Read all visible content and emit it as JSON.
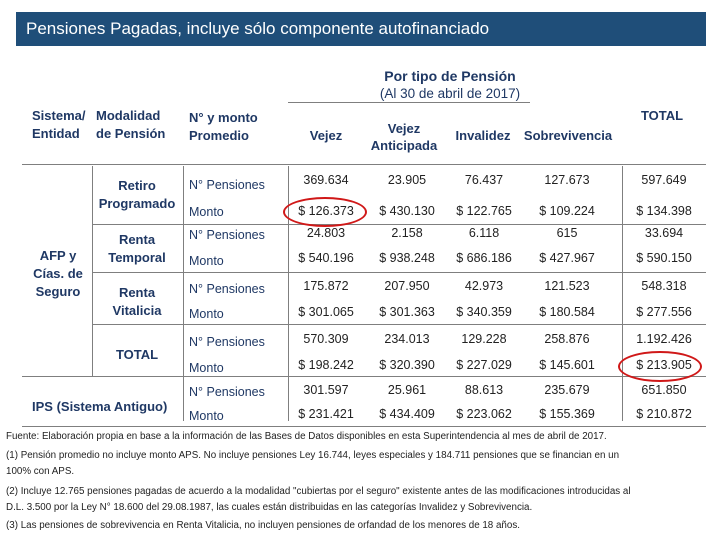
{
  "title": "Pensiones Pagadas, incluye sólo componente autofinanciado",
  "group_header": {
    "line1": "Por tipo de Pensión",
    "line2": "(Al 30 de abril de 2017)"
  },
  "headers": {
    "sistema": [
      "Sistema/",
      "Entidad"
    ],
    "modalidad": [
      "Modalidad",
      "de Pensión"
    ],
    "numero": [
      "N° y monto",
      "Promedio"
    ],
    "vejez": "Vejez",
    "vejez_anticipada": [
      "Vejez",
      "Anticipada"
    ],
    "invalidez": "Invalidez",
    "sobrevivencia": "Sobrevivencia",
    "total": "TOTAL"
  },
  "groups": {
    "afp": [
      "AFP y",
      "Cías. de",
      "Seguro"
    ],
    "ips": "IPS (Sistema Antiguo)"
  },
  "modalities": {
    "retiro": [
      "Retiro",
      "Programado"
    ],
    "temporal": [
      "Renta",
      "Temporal"
    ],
    "vitalicia": [
      "Renta",
      "Vitalicia"
    ],
    "total": "TOTAL"
  },
  "row_labels": {
    "n": "N° Pensiones",
    "monto": "Monto"
  },
  "rows": [
    {
      "values": [
        "369.634",
        "23.905",
        "76.437",
        "127.673",
        "597.649"
      ]
    },
    {
      "values": [
        "$ 126.373",
        "$ 430.130",
        "$ 122.765",
        "$ 109.224",
        "$ 134.398"
      ]
    },
    {
      "values": [
        "24.803",
        "2.158",
        "6.118",
        "615",
        "33.694"
      ]
    },
    {
      "values": [
        "$ 540.196",
        "$ 938.248",
        "$ 686.186",
        "$ 427.967",
        "$ 590.150"
      ]
    },
    {
      "values": [
        "175.872",
        "207.950",
        "42.973",
        "121.523",
        "548.318"
      ]
    },
    {
      "values": [
        "$ 301.065",
        "$ 301.363",
        "$ 340.359",
        "$ 180.584",
        "$ 277.556"
      ]
    },
    {
      "values": [
        "570.309",
        "234.013",
        "129.228",
        "258.876",
        "1.192.426"
      ]
    },
    {
      "values": [
        "$ 198.242",
        "$ 320.390",
        "$ 227.029",
        "$ 145.601",
        "$ 213.905"
      ]
    },
    {
      "values": [
        "301.597",
        "25.961",
        "88.613",
        "235.679",
        "651.850"
      ]
    },
    {
      "values": [
        "$ 231.421",
        "$ 434.409",
        "$ 223.062",
        "$ 155.369",
        "$ 210.872"
      ]
    }
  ],
  "notes": [
    "Fuente: Elaboración propia en base a la información de las Bases de Datos disponibles en esta Superintendencia al mes de abril de 2017.",
    "(1) Pensión promedio no incluye monto APS. No incluye pensiones Ley 16.744, leyes especiales y 184.711 pensiones que se financian en un",
    "100% con APS.",
    "(2) Incluye 12.765 pensiones pagadas de acuerdo a la modalidad \"cubiertas por el seguro\" existente antes de las modificaciones introducidas al",
    "D.L. 3.500 por la Ley N° 18.600 del 29.08.1987, las cuales están distribuidas en las categorías Invalidez y Sobrevivencia.",
    "(3) Las pensiones de sobrevivencia en Renta Vitalicia, no incluyen pensiones de orfandad de los menores de 18 años."
  ]
}
